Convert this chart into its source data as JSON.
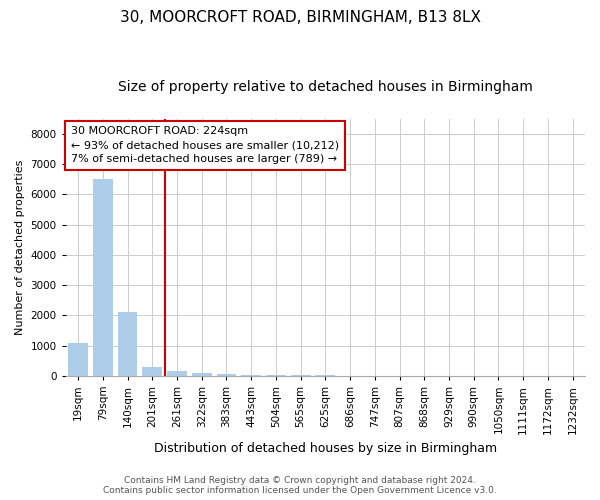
{
  "title": "30, MOORCROFT ROAD, BIRMINGHAM, B13 8LX",
  "subtitle": "Size of property relative to detached houses in Birmingham",
  "xlabel": "Distribution of detached houses by size in Birmingham",
  "ylabel": "Number of detached properties",
  "categories": [
    "19sqm",
    "79sqm",
    "140sqm",
    "201sqm",
    "261sqm",
    "322sqm",
    "383sqm",
    "443sqm",
    "504sqm",
    "565sqm",
    "625sqm",
    "686sqm",
    "747sqm",
    "807sqm",
    "868sqm",
    "929sqm",
    "990sqm",
    "1050sqm",
    "1111sqm",
    "1172sqm",
    "1232sqm"
  ],
  "values": [
    1100,
    6500,
    2100,
    290,
    160,
    80,
    50,
    35,
    25,
    18,
    14,
    12,
    10,
    8,
    7,
    6,
    5,
    4,
    3,
    2,
    1
  ],
  "bar_color": "#aecde8",
  "property_line_color": "#cc0000",
  "property_line_index": 3.5,
  "annotation_lines": [
    "30 MOORCROFT ROAD: 224sqm",
    "← 93% of detached houses are smaller (10,212)",
    "7% of semi-detached houses are larger (789) →"
  ],
  "annotation_box_color": "#cc0000",
  "annotation_box_bg": "#ffffff",
  "ylim": [
    0,
    8500
  ],
  "yticks": [
    0,
    1000,
    2000,
    3000,
    4000,
    5000,
    6000,
    7000,
    8000
  ],
  "grid_color": "#cccccc",
  "footer_line1": "Contains HM Land Registry data © Crown copyright and database right 2024.",
  "footer_line2": "Contains public sector information licensed under the Open Government Licence v3.0.",
  "background_color": "#ffffff",
  "title_fontsize": 11,
  "subtitle_fontsize": 10,
  "ylabel_fontsize": 8,
  "xlabel_fontsize": 9,
  "tick_fontsize": 7.5,
  "annotation_fontsize": 8,
  "footer_fontsize": 6.5
}
